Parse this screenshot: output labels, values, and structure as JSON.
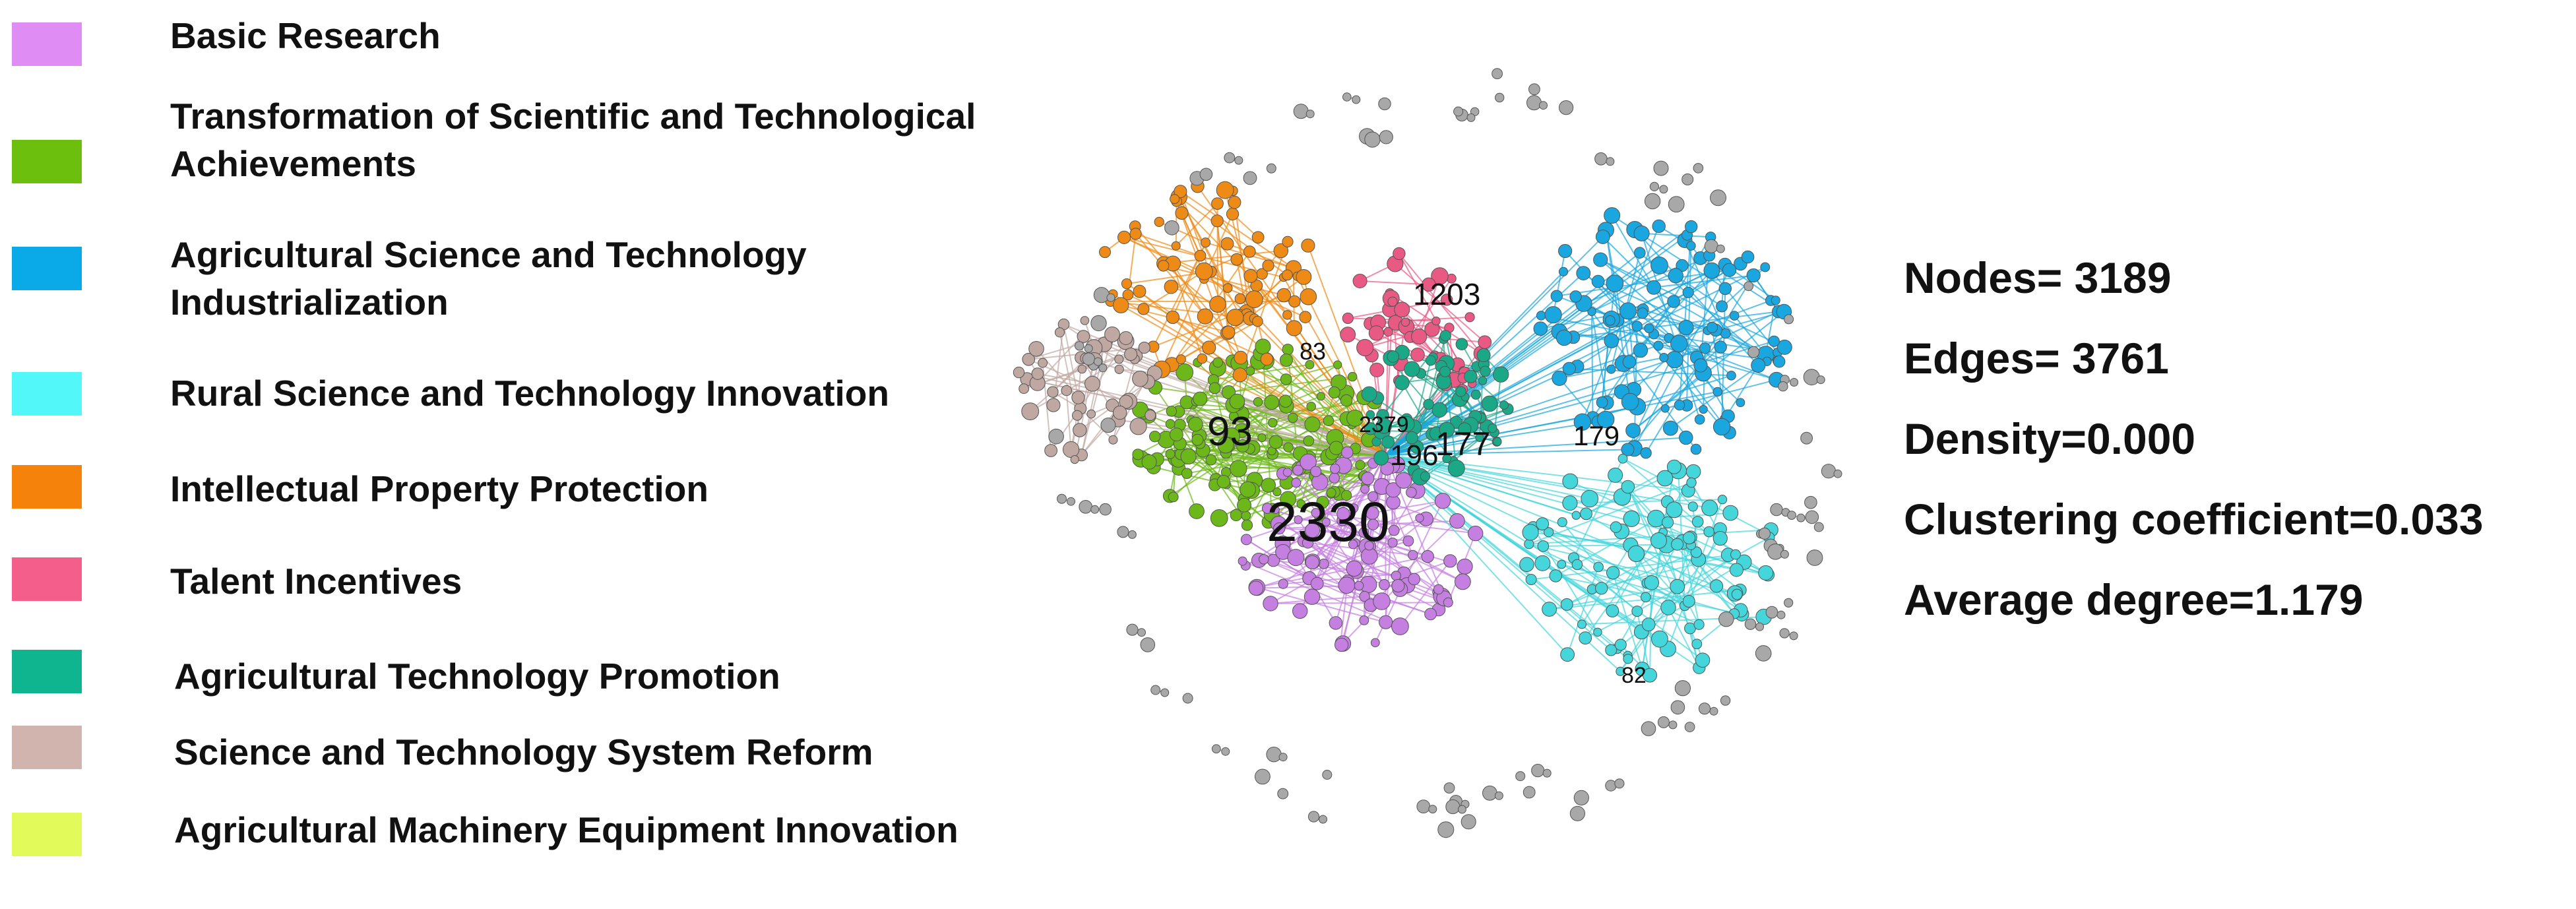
{
  "legend": [
    {
      "label": "Basic Research",
      "color": "#e08cf5"
    },
    {
      "label": "Transformation of Scientific and Technological Achievements",
      "color": "#6cbf0d"
    },
    {
      "label": "Agricultural Science and Technology Industrialization",
      "color": "#0aaae8"
    },
    {
      "label": "Rural Science and Technology Innovation",
      "color": "#52f7fa"
    },
    {
      "label": "Intellectual Property Protection",
      "color": "#f5820a"
    },
    {
      "label": "Talent Incentives",
      "color": "#f35e8b"
    },
    {
      "label": "Agricultural Technology Promotion",
      "color": "#0fb58f"
    },
    {
      "label": "Science and Technology System Reform",
      "color": "#d1b4ad"
    },
    {
      "label": "Agricultural Machinery Equipment Innovation",
      "color": "#e3fb5a"
    }
  ],
  "node_colors": {
    "basic_research": "#c57fe0",
    "transformation": "#6cb81a",
    "industrialization": "#1aa6de",
    "rural_innovation": "#45d6dc",
    "ip_protection": "#ee8a16",
    "talent": "#e85a84",
    "promotion": "#1aa887",
    "system_reform": "#c0a8a2",
    "isolated": "#a8a8a8"
  },
  "hub_labels": [
    "1203",
    "83",
    "93",
    "2379",
    "196",
    "177",
    "179",
    "2330",
    "82"
  ],
  "stats": [
    "Nodes= 3189",
    "Edges= 3761",
    "Density=0.000",
    "Clustering coefficient=0.033",
    "Average degree=1.179"
  ]
}
